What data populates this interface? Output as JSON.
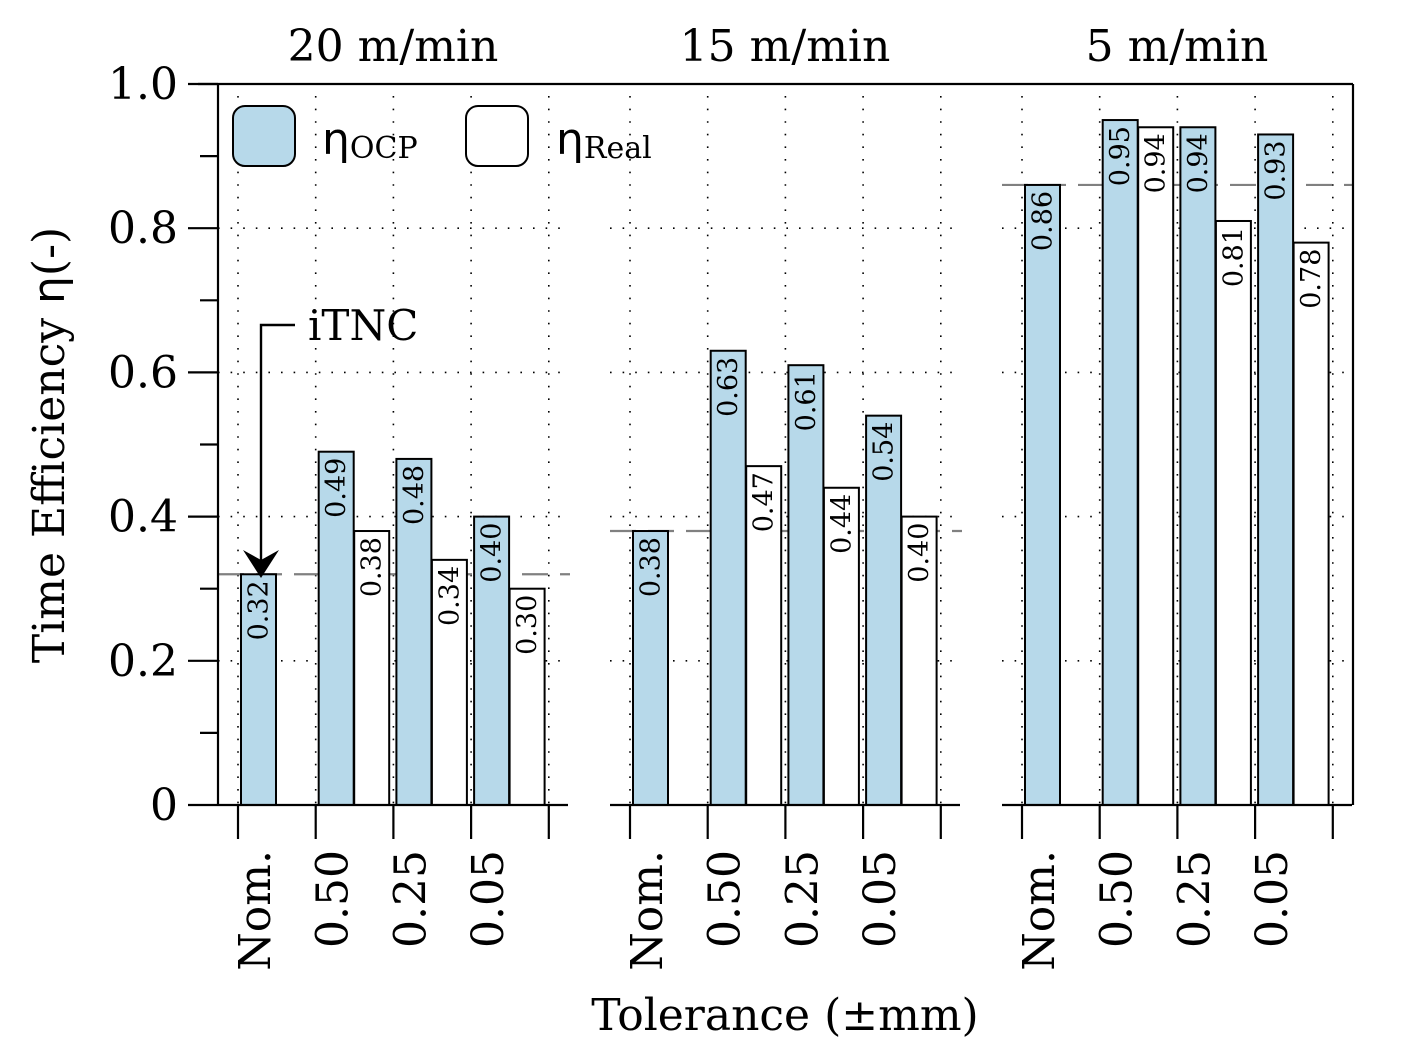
{
  "chart_data": {
    "type": "bar",
    "ylabel_text": "Time Efficiency ",
    "ylabel_symbol": "η",
    "ylabel_unit": "(-)",
    "xlabel": "Tolerance (±mm)",
    "ylim": [
      0,
      1.0
    ],
    "yticks": [
      "0",
      "0.2",
      "0.4",
      "0.6",
      "0.8",
      "1.0"
    ],
    "grid": true,
    "legend_position": "top-left",
    "legend": [
      {
        "symbol": "η",
        "subscript": "OCP",
        "color": "#b7d9ea"
      },
      {
        "symbol": "η",
        "subscript": "Real",
        "color": "#ffffff"
      }
    ],
    "annotation": "iTNC",
    "categories": [
      "Nom.",
      "0.50",
      "0.25",
      "0.05"
    ],
    "panels": [
      {
        "title": "20 m/min",
        "reference_line": 0.32,
        "series": [
          {
            "values": [
              0.32,
              0.49,
              0.48,
              0.4
            ],
            "labels": [
              "0.32",
              "0.49",
              "0.48",
              "0.40"
            ]
          },
          {
            "values": [
              null,
              0.38,
              0.34,
              0.3
            ],
            "labels": [
              "",
              "0.38",
              "0.34",
              "0.30"
            ]
          }
        ]
      },
      {
        "title": "15 m/min",
        "reference_line": 0.38,
        "series": [
          {
            "values": [
              0.38,
              0.63,
              0.61,
              0.54
            ],
            "labels": [
              "0.38",
              "0.63",
              "0.61",
              "0.54"
            ]
          },
          {
            "values": [
              null,
              0.47,
              0.44,
              0.4
            ],
            "labels": [
              "",
              "0.47",
              "0.44",
              "0.40"
            ]
          }
        ]
      },
      {
        "title": "5 m/min",
        "reference_line": 0.86,
        "series": [
          {
            "values": [
              0.86,
              0.95,
              0.94,
              0.93
            ],
            "labels": [
              "0.86",
              "0.95",
              "0.94",
              "0.93"
            ]
          },
          {
            "values": [
              null,
              0.94,
              0.81,
              0.78
            ],
            "labels": [
              "",
              "0.94",
              "0.81",
              "0.78"
            ]
          }
        ]
      }
    ]
  }
}
